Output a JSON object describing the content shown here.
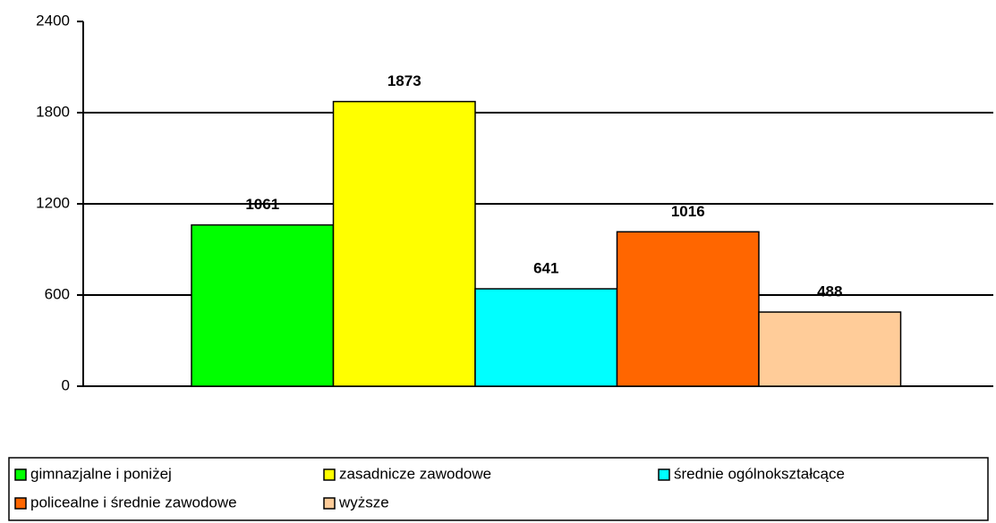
{
  "chart_data": {
    "type": "bar",
    "categories": [
      null
    ],
    "series": [
      {
        "name": "gimnazjalne i poniżej",
        "color": "#00ff00",
        "values": [
          1061
        ]
      },
      {
        "name": "zasadnicze zawodowe",
        "color": "#ffff00",
        "values": [
          1873
        ]
      },
      {
        "name": "średnie ogólnokształcące",
        "color": "#00ffff",
        "values": [
          641
        ]
      },
      {
        "name": "policealne i średnie zawodowe",
        "color": "#ff6600",
        "values": [
          1016
        ]
      },
      {
        "name": "wyższe",
        "color": "#ffcc99",
        "values": [
          488
        ]
      }
    ],
    "ylim": [
      0,
      2400
    ],
    "yticks": [
      0,
      600,
      1200,
      1800,
      2400
    ],
    "grid": true,
    "legend": "bottom"
  }
}
